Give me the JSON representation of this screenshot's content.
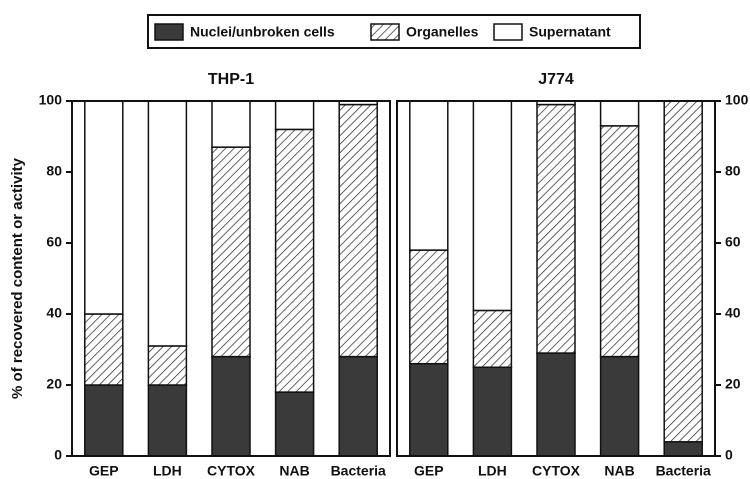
{
  "chart_data": [
    {
      "type": "bar",
      "stacked": true,
      "title": "THP-1",
      "ylabel": "% of recovered content or activity",
      "yaxis": "left",
      "categories": [
        "GEP",
        "LDH",
        "CYTOX",
        "NAB",
        "Bacteria"
      ],
      "series": [
        {
          "name": "Nuclei/unbroken cells",
          "color": "#3a3a3a",
          "hatch": false,
          "values": [
            20,
            20,
            28,
            18,
            28
          ]
        },
        {
          "name": "Organelles",
          "color": "#ffffff",
          "hatch": true,
          "values": [
            20,
            11,
            59,
            74,
            71
          ]
        },
        {
          "name": "Supernatant",
          "color": "#ffffff",
          "hatch": false,
          "values": [
            60,
            69,
            13,
            8,
            1
          ]
        }
      ],
      "ylim": [
        0,
        100
      ],
      "yticks": [
        0,
        20,
        40,
        60,
        80,
        100
      ]
    },
    {
      "type": "bar",
      "stacked": true,
      "title": "J774",
      "yaxis": "right",
      "categories": [
        "GEP",
        "LDH",
        "CYTOX",
        "NAB",
        "Bacteria"
      ],
      "series": [
        {
          "color": "#3a3a3a",
          "hatch": false,
          "values": [
            26,
            25,
            29,
            28,
            4
          ]
        },
        {
          "color": "#ffffff",
          "hatch": true,
          "values": [
            32,
            16,
            70,
            65,
            96
          ]
        },
        {
          "color": "#ffffff",
          "hatch": false,
          "values": [
            42,
            59,
            1,
            7,
            0
          ]
        }
      ],
      "ylim": [
        0,
        100
      ],
      "yticks": [
        0,
        20,
        40,
        60,
        80,
        100
      ]
    }
  ]
}
